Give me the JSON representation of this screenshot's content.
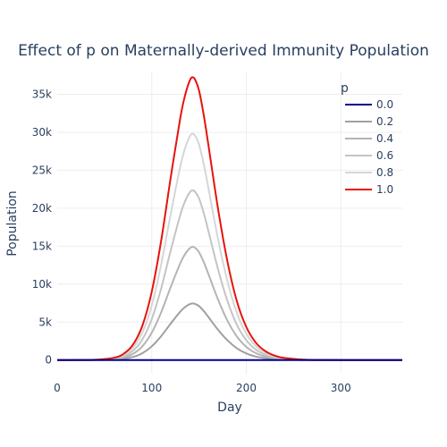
{
  "chart_data": {
    "type": "line",
    "title": "Effect of p on Maternally-derived Immunity Population",
    "xlabel": "Day",
    "ylabel": "Population",
    "xlim": [
      0,
      365
    ],
    "ylim": [
      -1800,
      38000
    ],
    "x_ticks": [
      0,
      100,
      200,
      300
    ],
    "x_tick_labels": [
      "0",
      "100",
      "200",
      "300"
    ],
    "y_ticks": [
      0,
      5000,
      10000,
      15000,
      20000,
      25000,
      30000,
      35000
    ],
    "y_tick_labels": [
      "0",
      "5k",
      "10k",
      "15k",
      "20k",
      "25k",
      "30k",
      "35k"
    ],
    "grid": true,
    "legend": {
      "title": "p",
      "placement": "top-right"
    },
    "x": [
      0,
      20,
      40,
      60,
      70,
      80,
      90,
      100,
      110,
      120,
      130,
      135,
      140,
      143,
      146,
      150,
      155,
      160,
      170,
      180,
      190,
      200,
      210,
      220,
      230,
      240,
      260,
      280,
      300,
      330,
      365
    ],
    "series": [
      {
        "name": "0.0",
        "color": "#00008b",
        "values": [
          0,
          0,
          0,
          0,
          0,
          0,
          0,
          0,
          0,
          0,
          0,
          0,
          0,
          0,
          0,
          0,
          0,
          0,
          0,
          0,
          0,
          0,
          0,
          0,
          0,
          0,
          0,
          0,
          0,
          0,
          0
        ]
      },
      {
        "name": "0.2",
        "color": "#a0a0a0",
        "values": [
          0,
          1,
          8,
          60,
          160,
          400,
          900,
          1800,
          3150,
          4800,
          6350,
          6950,
          7350,
          7450,
          7380,
          7100,
          6450,
          5650,
          4000,
          2600,
          1550,
          870,
          460,
          235,
          115,
          55,
          12,
          2,
          0,
          0,
          0
        ]
      },
      {
        "name": "0.4",
        "color": "#b4b4b4",
        "values": [
          0,
          2,
          16,
          120,
          320,
          800,
          1800,
          3600,
          6300,
          9600,
          12700,
          13900,
          14700,
          14900,
          14760,
          14200,
          12900,
          11300,
          8000,
          5200,
          3100,
          1740,
          920,
          470,
          230,
          110,
          24,
          4,
          1,
          0,
          0
        ]
      },
      {
        "name": "0.6",
        "color": "#c4c4c4",
        "values": [
          0,
          3,
          24,
          180,
          480,
          1200,
          2700,
          5400,
          9450,
          14400,
          19050,
          20850,
          22050,
          22350,
          22140,
          21300,
          19350,
          16950,
          12000,
          7800,
          4650,
          2610,
          1380,
          705,
          345,
          165,
          36,
          6,
          1,
          0,
          0
        ]
      },
      {
        "name": "0.8",
        "color": "#d6d6d6",
        "values": [
          0,
          4,
          32,
          240,
          640,
          1600,
          3600,
          7200,
          12600,
          19200,
          25400,
          27800,
          29400,
          29800,
          29520,
          28400,
          25800,
          22600,
          16000,
          10400,
          6200,
          3480,
          1840,
          940,
          460,
          220,
          48,
          8,
          1,
          0,
          0
        ]
      },
      {
        "name": "1.0",
        "color": "#e8120c",
        "values": [
          0,
          5,
          40,
          300,
          800,
          2000,
          4500,
          9000,
          15750,
          24000,
          31750,
          34750,
          36750,
          37250,
          36900,
          35500,
          32250,
          28250,
          20000,
          13000,
          7750,
          4350,
          2300,
          1175,
          575,
          275,
          60,
          10,
          1,
          0,
          0
        ]
      }
    ]
  }
}
